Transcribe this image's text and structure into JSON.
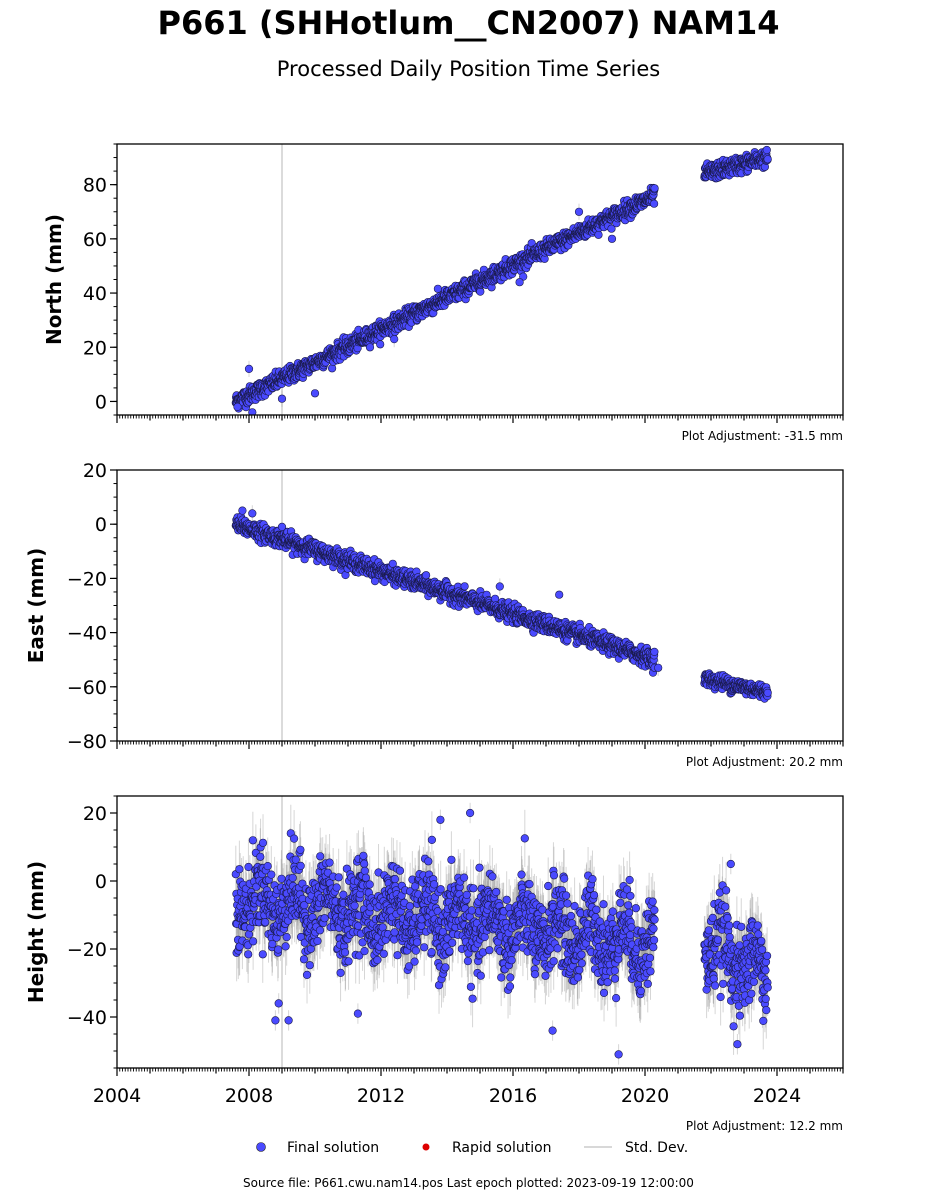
{
  "header": {
    "title": "P661 (SHHotlum__CN2007) NAM14",
    "subtitle": "Processed Daily Position Time Series"
  },
  "footer": {
    "source": "Source file: P661.cwu.nam14.pos  Last epoch plotted: 2023-09-19 12:00:00"
  },
  "legend": {
    "placement": "bottom-center",
    "items": [
      {
        "label": "Final solution",
        "color": "#4a4aff",
        "marker": "circle"
      },
      {
        "label": "Rapid solution",
        "color": "#dd0000",
        "marker": "dot"
      },
      {
        "label": "Std. Dev.",
        "color": "#cccccc",
        "marker": "line"
      }
    ]
  },
  "chart_data": [
    {
      "type": "scatter",
      "ylabel": "North (mm)",
      "xlim": [
        2004,
        2026
      ],
      "ylim": [
        -5,
        95
      ],
      "yticks": [
        0,
        20,
        40,
        60,
        80
      ],
      "adjustment": "Plot Adjustment: -31.5 mm",
      "reference_line_x": 2009.0,
      "segments": [
        {
          "x_start": 2007.6,
          "x_end": 2020.3,
          "y_start": 0,
          "y_end": 76,
          "scatter": 1.5
        },
        {
          "x_start": 2021.8,
          "x_end": 2023.72,
          "y_start": 84,
          "y_end": 90,
          "scatter": 1.5
        }
      ],
      "points": [
        [
          2007.65,
          -2
        ],
        [
          2008.0,
          12
        ],
        [
          2008.1,
          -4
        ],
        [
          2009.0,
          1
        ],
        [
          2010.0,
          3
        ],
        [
          2012.4,
          23
        ],
        [
          2016.2,
          44
        ],
        [
          2018.0,
          70
        ],
        [
          2019.0,
          60
        ]
      ]
    },
    {
      "type": "scatter",
      "ylabel": "East (mm)",
      "xlim": [
        2004,
        2026
      ],
      "ylim": [
        -80,
        20
      ],
      "yticks": [
        -80,
        -60,
        -40,
        -20,
        0,
        20
      ],
      "adjustment": "Plot Adjustment: 20.2 mm",
      "reference_line_x": 2009.0,
      "segments": [
        {
          "x_start": 2007.6,
          "x_end": 2020.3,
          "y_start": 0,
          "y_end": -50,
          "scatter": 1.5
        },
        {
          "x_start": 2021.8,
          "x_end": 2023.72,
          "y_start": -57,
          "y_end": -62,
          "scatter": 1.3
        }
      ],
      "points": [
        [
          2007.8,
          5
        ],
        [
          2008.1,
          4
        ],
        [
          2009.0,
          -1
        ],
        [
          2015.6,
          -23
        ],
        [
          2017.4,
          -26
        ],
        [
          2020.4,
          -53
        ]
      ]
    },
    {
      "type": "scatter",
      "ylabel": "Height (mm)",
      "xlim": [
        2004,
        2026
      ],
      "ylim": [
        -55,
        25
      ],
      "yticks": [
        -40,
        -20,
        0,
        20
      ],
      "xticks": [
        2004,
        2008,
        2012,
        2016,
        2020,
        2024
      ],
      "adjustment": "Plot Adjustment: 12.2 mm",
      "reference_line_x": 2009.0,
      "segments": [
        {
          "x_start": 2007.6,
          "x_end": 2020.3,
          "y_start": -5,
          "y_end": -18,
          "scatter": 6,
          "seasonal": 5
        },
        {
          "x_start": 2021.8,
          "x_end": 2023.72,
          "y_start": -18,
          "y_end": -28,
          "scatter": 6,
          "seasonal": 5
        }
      ],
      "points": [
        [
          2008.8,
          -41
        ],
        [
          2008.9,
          -36
        ],
        [
          2009.2,
          -41
        ],
        [
          2013.8,
          18
        ],
        [
          2014.7,
          20
        ],
        [
          2011.3,
          -39
        ],
        [
          2017.2,
          -44
        ],
        [
          2019.2,
          -51
        ],
        [
          2022.6,
          5
        ],
        [
          2022.8,
          -48
        ]
      ]
    }
  ]
}
